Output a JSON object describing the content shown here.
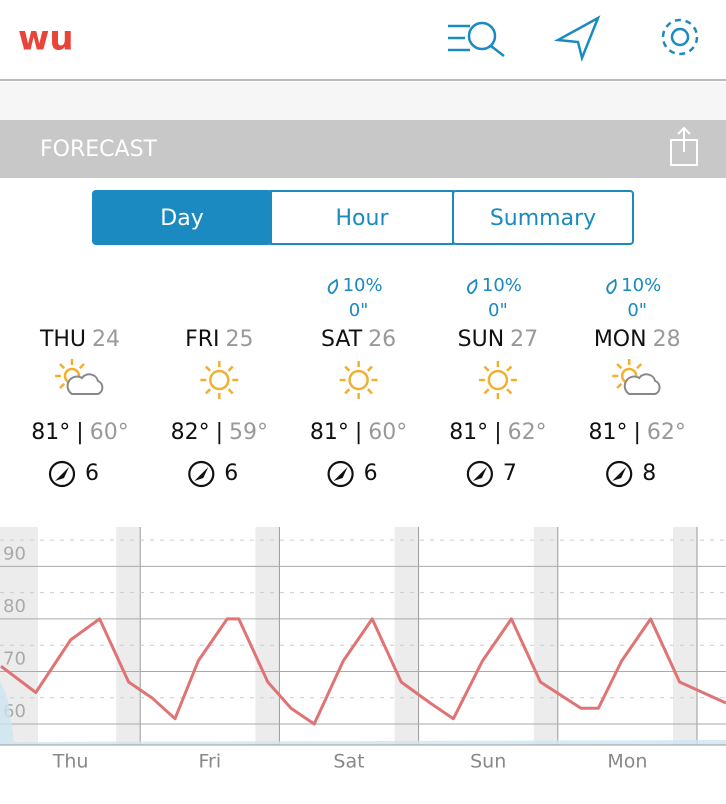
{
  "header": {
    "logo": "wu"
  },
  "section": {
    "title": "FORECAST"
  },
  "tabs": [
    {
      "label": "Day",
      "active": true
    },
    {
      "label": "Hour",
      "active": false
    },
    {
      "label": "Summary",
      "active": false
    }
  ],
  "days": [
    {
      "day": "THU",
      "date": "24",
      "icon": "partly-cloudy",
      "high": "81°",
      "low": "60°",
      "wind": "6",
      "precip": null,
      "amount": null
    },
    {
      "day": "FRI",
      "date": "25",
      "icon": "sunny",
      "high": "82°",
      "low": "59°",
      "wind": "6",
      "precip": null,
      "amount": null
    },
    {
      "day": "SAT",
      "date": "26",
      "icon": "sunny",
      "high": "81°",
      "low": "60°",
      "wind": "6",
      "precip": "10%",
      "amount": "0\""
    },
    {
      "day": "SUN",
      "date": "27",
      "icon": "sunny",
      "high": "81°",
      "low": "62°",
      "wind": "7",
      "precip": "10%",
      "amount": "0\""
    },
    {
      "day": "MON",
      "date": "28",
      "icon": "partly-cloudy",
      "high": "81°",
      "low": "62°",
      "wind": "8",
      "precip": "10%",
      "amount": "0\""
    }
  ],
  "chart": {
    "type": "line",
    "color": "#e07373",
    "x": [
      0,
      6,
      12,
      17,
      22,
      26,
      30,
      34,
      39,
      41,
      46,
      50,
      54,
      59,
      64,
      69,
      74,
      78,
      83,
      88,
      93,
      100,
      103,
      107,
      112,
      117,
      125
    ],
    "values": [
      71,
      66,
      76,
      80,
      68,
      65,
      61,
      72,
      80,
      80,
      68,
      63,
      60,
      72,
      80,
      68,
      64,
      61,
      72,
      80,
      68,
      63,
      63,
      72,
      80,
      68,
      64
    ],
    "xlim": [
      0,
      125
    ],
    "ylim": [
      56,
      97.5
    ],
    "yticks": [
      60,
      70,
      80,
      90
    ],
    "xticks": [
      {
        "value": 12,
        "label": "Thu"
      },
      {
        "value": 36,
        "label": "Fri"
      },
      {
        "value": 60,
        "label": "Sat"
      },
      {
        "value": 84,
        "label": "Sun"
      },
      {
        "value": 108,
        "label": "Mon"
      }
    ],
    "xgrid": [
      24,
      48,
      72,
      96,
      120
    ]
  }
}
